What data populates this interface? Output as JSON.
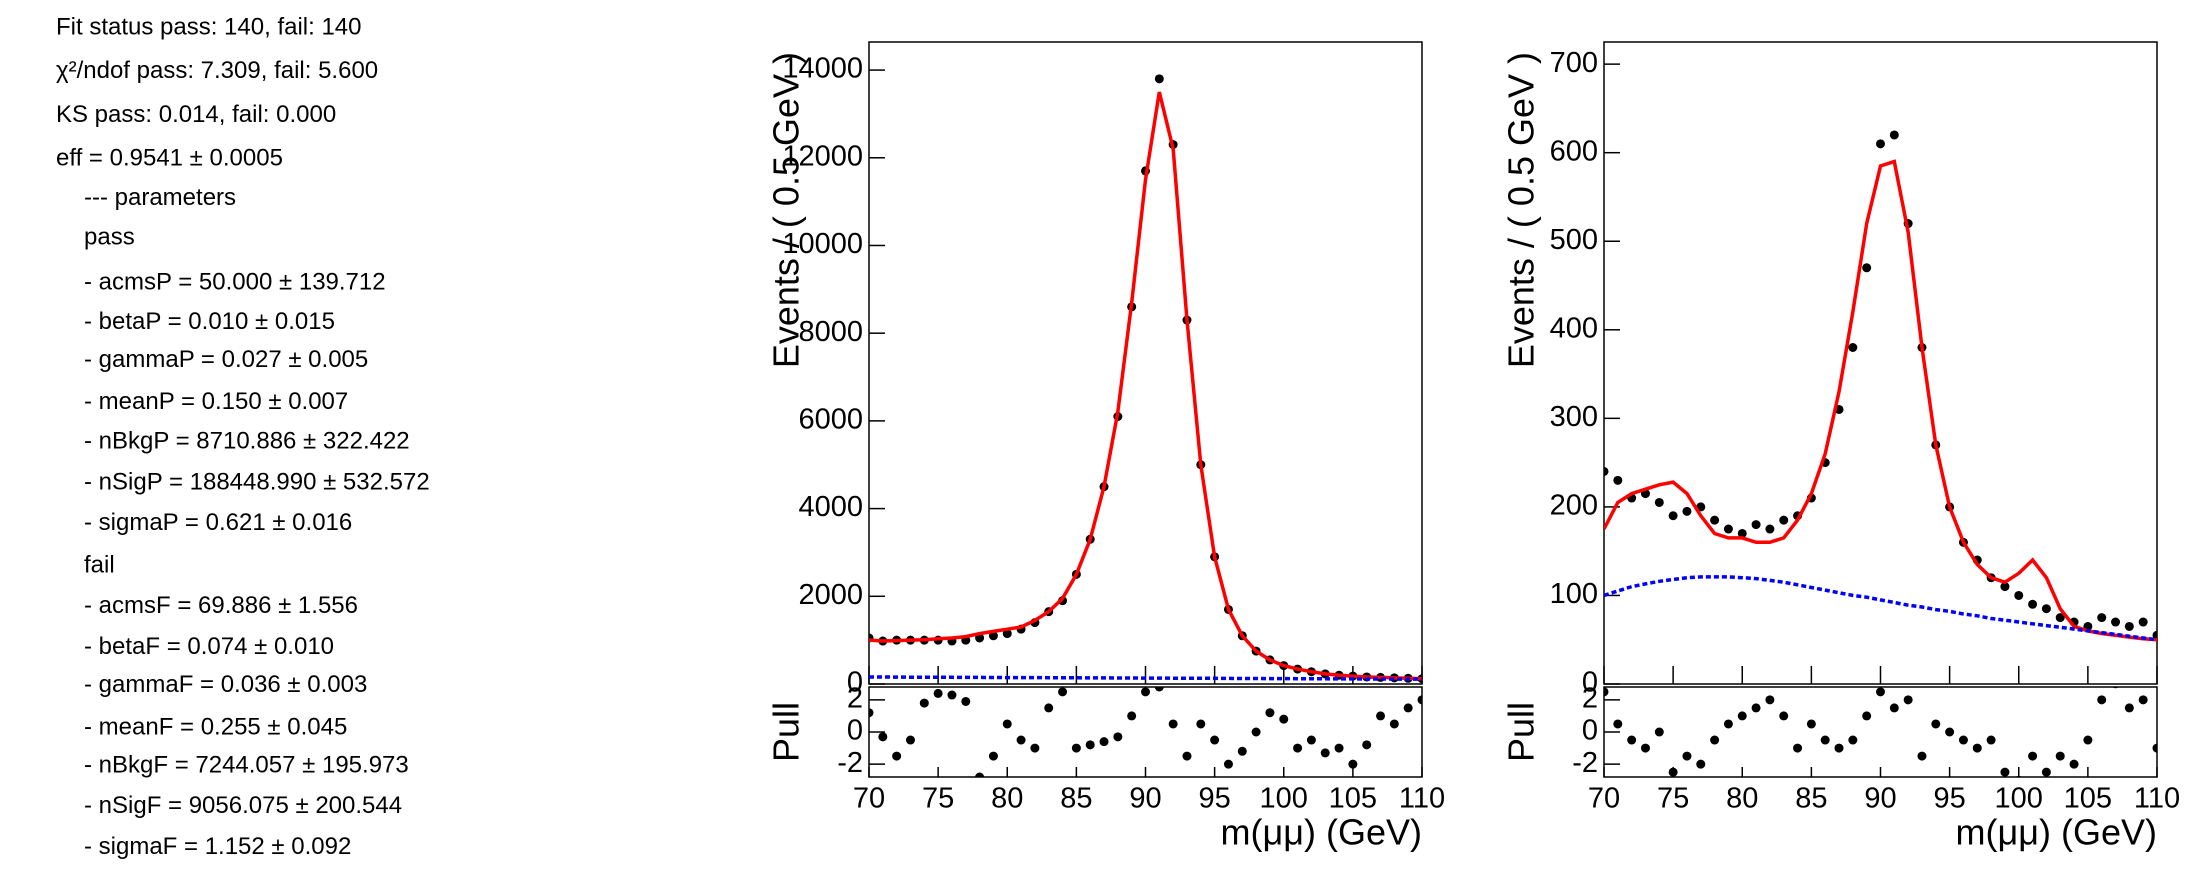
{
  "fit_info": [
    "Fit status pass: 140, fail: 140",
    "χ²/ndof pass: 7.309, fail: 5.600",
    "KS pass: 0.014, fail: 0.000",
    "eff = 0.9541 ± 0.0005",
    "--- parameters",
    "pass",
    "- acmsP = 50.000  ± 139.712",
    "- betaP = 0.010  ± 0.015",
    "- gammaP = 0.027  ± 0.005",
    "- meanP = 0.150  ± 0.007",
    "- nBkgP = 8710.886  ± 322.422",
    "- nSigP = 188448.990  ± 532.572",
    "- sigmaP = 0.621  ± 0.016",
    "fail",
    "- acmsF = 69.886  ± 1.556",
    "- betaF = 0.074  ± 0.010",
    "- gammaF = 0.036  ± 0.003",
    "- meanF = 0.255  ± 0.045",
    "- nBkgF = 7244.057  ± 195.973",
    "- nSigF = 9056.075  ± 200.544",
    "- sigmaF = 1.152  ± 0.092"
  ],
  "chart_data": [
    {
      "type": "line",
      "ylabel": "Events / ( 0.5 GeV )",
      "x": [
        70,
        71,
        72,
        73,
        74,
        75,
        76,
        77,
        78,
        79,
        80,
        81,
        82,
        83,
        84,
        85,
        86,
        87,
        88,
        89,
        90,
        91,
        92,
        93,
        94,
        95,
        96,
        97,
        98,
        99,
        100,
        101,
        102,
        103,
        104,
        105,
        106,
        107,
        108,
        109,
        110
      ],
      "series": [
        {
          "style": "points",
          "color": "#000000",
          "values": [
            1050,
            980,
            1000,
            1000,
            1000,
            1000,
            980,
            1000,
            1050,
            1100,
            1150,
            1250,
            1400,
            1650,
            1900,
            2500,
            3300,
            4500,
            6100,
            8600,
            11700,
            13800,
            12300,
            8300,
            5000,
            2900,
            1700,
            1100,
            750,
            550,
            420,
            340,
            280,
            230,
            200,
            180,
            160,
            150,
            140,
            130,
            120
          ]
        },
        {
          "style": "solid",
          "color": "#ff0000",
          "values": [
            1000,
            980,
            990,
            1000,
            1010,
            1030,
            1050,
            1080,
            1150,
            1200,
            1250,
            1300,
            1450,
            1650,
            1950,
            2500,
            3300,
            4500,
            6200,
            8700,
            11500,
            13500,
            12200,
            8300,
            5000,
            2900,
            1700,
            1100,
            750,
            550,
            420,
            340,
            280,
            230,
            200,
            180,
            160,
            150,
            140,
            130,
            120
          ]
        },
        {
          "style": "dashed",
          "color": "#0000ff",
          "values": [
            160,
            159,
            157,
            156,
            155,
            154,
            152,
            151,
            150,
            149,
            147,
            146,
            145,
            144,
            142,
            141,
            140,
            139,
            137,
            136,
            135,
            134,
            132,
            131,
            130,
            129,
            127,
            126,
            125,
            124,
            122,
            121,
            120,
            119,
            117,
            116,
            115,
            114,
            112,
            111,
            110
          ]
        }
      ],
      "xlim": [
        70,
        110
      ],
      "xticks": [
        70,
        75,
        80,
        85,
        90,
        95,
        100,
        105,
        110
      ],
      "ylim": [
        0,
        14640
      ],
      "yticks": [
        0,
        2000,
        4000,
        6000,
        8000,
        10000,
        12000,
        14000
      ]
    },
    {
      "type": "scatter",
      "ylabel": "Pull",
      "xlabel": "m(μμ) (GeV)",
      "x": [
        70,
        71,
        72,
        73,
        74,
        75,
        76,
        77,
        78,
        79,
        80,
        81,
        82,
        83,
        84,
        85,
        86,
        87,
        88,
        89,
        90,
        91,
        92,
        93,
        94,
        95,
        96,
        97,
        98,
        99,
        100,
        101,
        102,
        103,
        104,
        105,
        106,
        107,
        108,
        109,
        110
      ],
      "series": [
        {
          "style": "points",
          "color": "#000000",
          "values": [
            1.2,
            -0.3,
            -1.5,
            -0.5,
            1.8,
            2.4,
            2.3,
            1.9,
            -2.8,
            -1.5,
            0.5,
            -0.5,
            -1.0,
            1.5,
            2.5,
            -1.0,
            -0.8,
            -0.6,
            -0.3,
            1.0,
            2.5,
            2.8,
            0.5,
            -1.5,
            0.5,
            -0.5,
            -2.0,
            -1.2,
            0.0,
            1.2,
            0.8,
            -1.0,
            -0.5,
            -1.3,
            -1.0,
            -2.0,
            -0.8,
            1.0,
            0.5,
            1.5,
            2.0
          ]
        }
      ],
      "xlim": [
        70,
        110
      ],
      "xticks": [
        70,
        75,
        80,
        85,
        90,
        95,
        100,
        105,
        110
      ],
      "ylim": [
        -2.8,
        2.8
      ],
      "yticks": [
        -2,
        0,
        2
      ]
    },
    {
      "type": "line",
      "ylabel": "Events / ( 0.5 GeV )",
      "x": [
        70,
        71,
        72,
        73,
        74,
        75,
        76,
        77,
        78,
        79,
        80,
        81,
        82,
        83,
        84,
        85,
        86,
        87,
        88,
        89,
        90,
        91,
        92,
        93,
        94,
        95,
        96,
        97,
        98,
        99,
        100,
        101,
        102,
        103,
        104,
        105,
        106,
        107,
        108,
        109,
        110
      ],
      "series": [
        {
          "style": "points",
          "color": "#000000",
          "values": [
            240,
            230,
            210,
            215,
            205,
            190,
            195,
            200,
            185,
            175,
            170,
            180,
            175,
            185,
            190,
            210,
            250,
            310,
            380,
            470,
            610,
            620,
            520,
            380,
            270,
            200,
            160,
            140,
            120,
            110,
            100,
            90,
            85,
            75,
            70,
            65,
            75,
            70,
            65,
            70,
            55
          ]
        },
        {
          "style": "solid",
          "color": "#ff0000",
          "values": [
            175,
            205,
            215,
            220,
            225,
            228,
            215,
            190,
            170,
            165,
            165,
            160,
            160,
            165,
            185,
            215,
            260,
            330,
            420,
            520,
            585,
            590,
            510,
            380,
            270,
            200,
            160,
            135,
            120,
            115,
            125,
            140,
            120,
            85,
            65,
            60,
            57,
            55,
            53,
            51,
            50
          ]
        },
        {
          "style": "dashed",
          "color": "#0000ff",
          "values": [
            100,
            105,
            110,
            113,
            116,
            118,
            120,
            121,
            121,
            121,
            120,
            119,
            117,
            115,
            112,
            109,
            106,
            103,
            100,
            98,
            95,
            92,
            89,
            87,
            84,
            82,
            79,
            77,
            74,
            72,
            70,
            68,
            66,
            64,
            62,
            60,
            58,
            56,
            54,
            52,
            50
          ]
        }
      ],
      "xlim": [
        70,
        110
      ],
      "xticks": [
        70,
        75,
        80,
        85,
        90,
        95,
        100,
        105,
        110
      ],
      "ylim": [
        0,
        725
      ],
      "yticks": [
        0,
        100,
        200,
        300,
        400,
        500,
        600,
        700
      ]
    },
    {
      "type": "scatter",
      "ylabel": "Pull",
      "xlabel": "m(μμ) (GeV)",
      "x": [
        70,
        71,
        72,
        73,
        74,
        75,
        76,
        77,
        78,
        79,
        80,
        81,
        82,
        83,
        84,
        85,
        86,
        87,
        88,
        89,
        90,
        91,
        92,
        93,
        94,
        95,
        96,
        97,
        98,
        99,
        100,
        101,
        102,
        103,
        104,
        105,
        106,
        107,
        108,
        109,
        110
      ],
      "series": [
        {
          "style": "points",
          "color": "#000000",
          "values": [
            2.5,
            0.5,
            -0.5,
            -1.0,
            0.0,
            -2.5,
            -1.5,
            -2.0,
            -0.5,
            0.5,
            1.0,
            1.5,
            2.0,
            1.0,
            -1.0,
            0.5,
            -0.5,
            -1.0,
            -0.5,
            1.0,
            2.5,
            1.5,
            2.0,
            -1.5,
            0.5,
            0.0,
            -0.5,
            -1.0,
            -0.5,
            -2.5,
            -3.0,
            -1.5,
            -2.5,
            -1.5,
            -2.0,
            -0.5,
            2.0,
            3.0,
            1.5,
            2.0,
            -1.0
          ]
        }
      ],
      "xlim": [
        70,
        110
      ],
      "xticks": [
        70,
        75,
        80,
        85,
        90,
        95,
        100,
        105,
        110
      ],
      "ylim": [
        -2.8,
        2.8
      ],
      "yticks": [
        -2,
        0,
        2
      ]
    }
  ]
}
